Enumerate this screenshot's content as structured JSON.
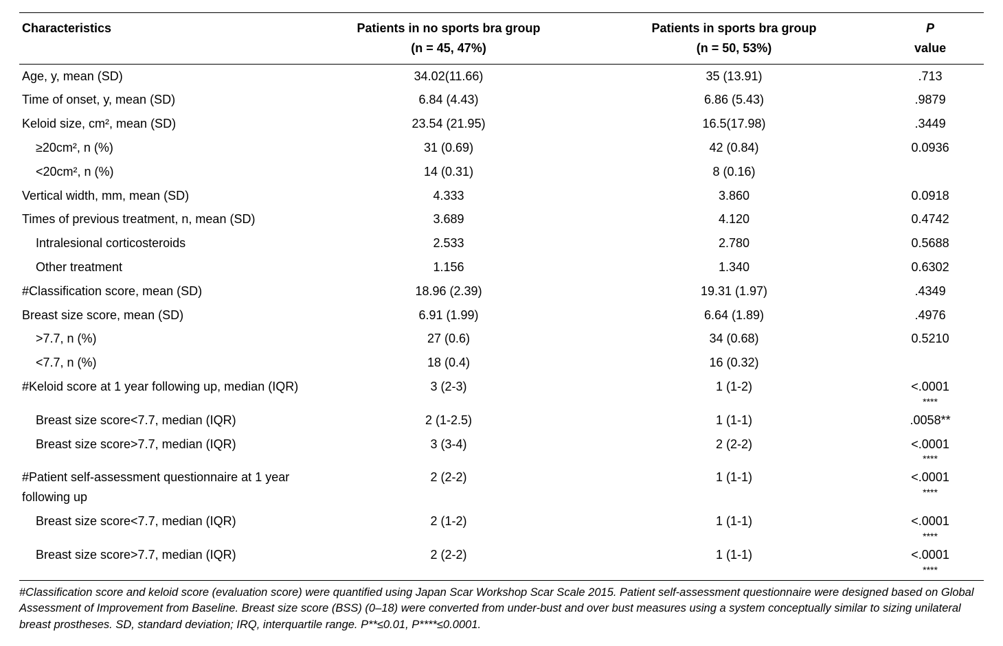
{
  "table": {
    "columns": [
      {
        "label": "Characteristics"
      },
      {
        "label_line1": "Patients in no sports bra group",
        "label_line2": "(n = 45, 47%)"
      },
      {
        "label_line1": "Patients in sports bra group",
        "label_line2": "(n = 50, 53%)"
      },
      {
        "label_line1": "P",
        "label_line2": "value"
      }
    ],
    "rows": [
      {
        "label": "Age, y, mean (SD)",
        "g1": "34.02(11.66)",
        "g2": "35 (13.91)",
        "p": ".713"
      },
      {
        "label": "Time of onset, y, mean (SD)",
        "g1": "6.84 (4.43)",
        "g2": "6.86 (5.43)",
        "p": ".9879"
      },
      {
        "label": "Keloid size, cm², mean (SD)",
        "g1": "23.54 (21.95)",
        "g2": "16.5(17.98)",
        "p": ".3449"
      },
      {
        "label": "≥20cm², n (%)",
        "indent": true,
        "g1": "31 (0.69)",
        "g2": "42 (0.84)",
        "p": "0.0936"
      },
      {
        "label": "<20cm², n (%)",
        "indent": true,
        "g1": "14 (0.31)",
        "g2": "8 (0.16)",
        "p": ""
      },
      {
        "label": "Vertical width, mm, mean (SD)",
        "g1": "4.333",
        "g2": "3.860",
        "p": "0.0918"
      },
      {
        "label": "Times of previous treatment, n, mean (SD)",
        "g1": "3.689",
        "g2": "4.120",
        "p": "0.4742"
      },
      {
        "label": "Intralesional corticosteroids",
        "indent": true,
        "g1": "2.533",
        "g2": "2.780",
        "p": "0.5688"
      },
      {
        "label": "Other treatment",
        "indent": true,
        "g1": "1.156",
        "g2": "1.340",
        "p": "0.6302"
      },
      {
        "label": "#Classification score, mean (SD)",
        "g1": "18.96 (2.39)",
        "g2": "19.31 (1.97)",
        "p": ".4349"
      },
      {
        "label": "Breast size score, mean (SD)",
        "g1": "6.91 (1.99)",
        "g2": "6.64 (1.89)",
        "p": ".4976"
      },
      {
        "label": ">7.7, n (%)",
        "indent": true,
        "g1": "27 (0.6)",
        "g2": "34 (0.68)",
        "p": "0.5210"
      },
      {
        "label": "<7.7, n (%)",
        "indent": true,
        "g1": "18 (0.4)",
        "g2": "16 (0.32)",
        "p": ""
      },
      {
        "label": "#Keloid score at 1 year following up, median (IQR)",
        "g1": "3 (2-3)",
        "g2": "1 (1-2)",
        "p": "<.0001",
        "sig": "****"
      },
      {
        "label": "Breast size score<7.7, median (IQR)",
        "indent": true,
        "g1": "2 (1-2.5)",
        "g2": "1 (1-1)",
        "p": ".0058**"
      },
      {
        "label": "Breast size score>7.7, median (IQR)",
        "indent": true,
        "g1": "3 (3-4)",
        "g2": "2 (2-2)",
        "p": "<.0001",
        "sig": "****"
      },
      {
        "label": "#Patient self-assessment questionnaire at 1 year following up",
        "g1": "2 (2-2)",
        "g2": "1 (1-1)",
        "p": "<.0001",
        "sig": "****"
      },
      {
        "label": "Breast size score<7.7, median (IQR)",
        "indent": true,
        "g1": "2 (1-2)",
        "g2": "1 (1-1)",
        "p": "<.0001",
        "sig": "****"
      },
      {
        "label": "Breast size score>7.7, median (IQR)",
        "indent": true,
        "g1": "2 (2-2)",
        "g2": "1 (1-1)",
        "p": "<.0001",
        "sig": "****"
      }
    ]
  },
  "footnote": "#Classification score and keloid score (evaluation score) were quantified using Japan Scar Workshop Scar Scale 2015. Patient self-assessment questionnaire were designed based on Global Assessment of Improvement from Baseline. Breast size score (BSS) (0–18) were converted from under-bust and over bust measures using a system conceptually similar to sizing unilateral breast prostheses. SD, standard deviation; IRQ, interquartile range. P**≤0.01, P****≤0.0001."
}
